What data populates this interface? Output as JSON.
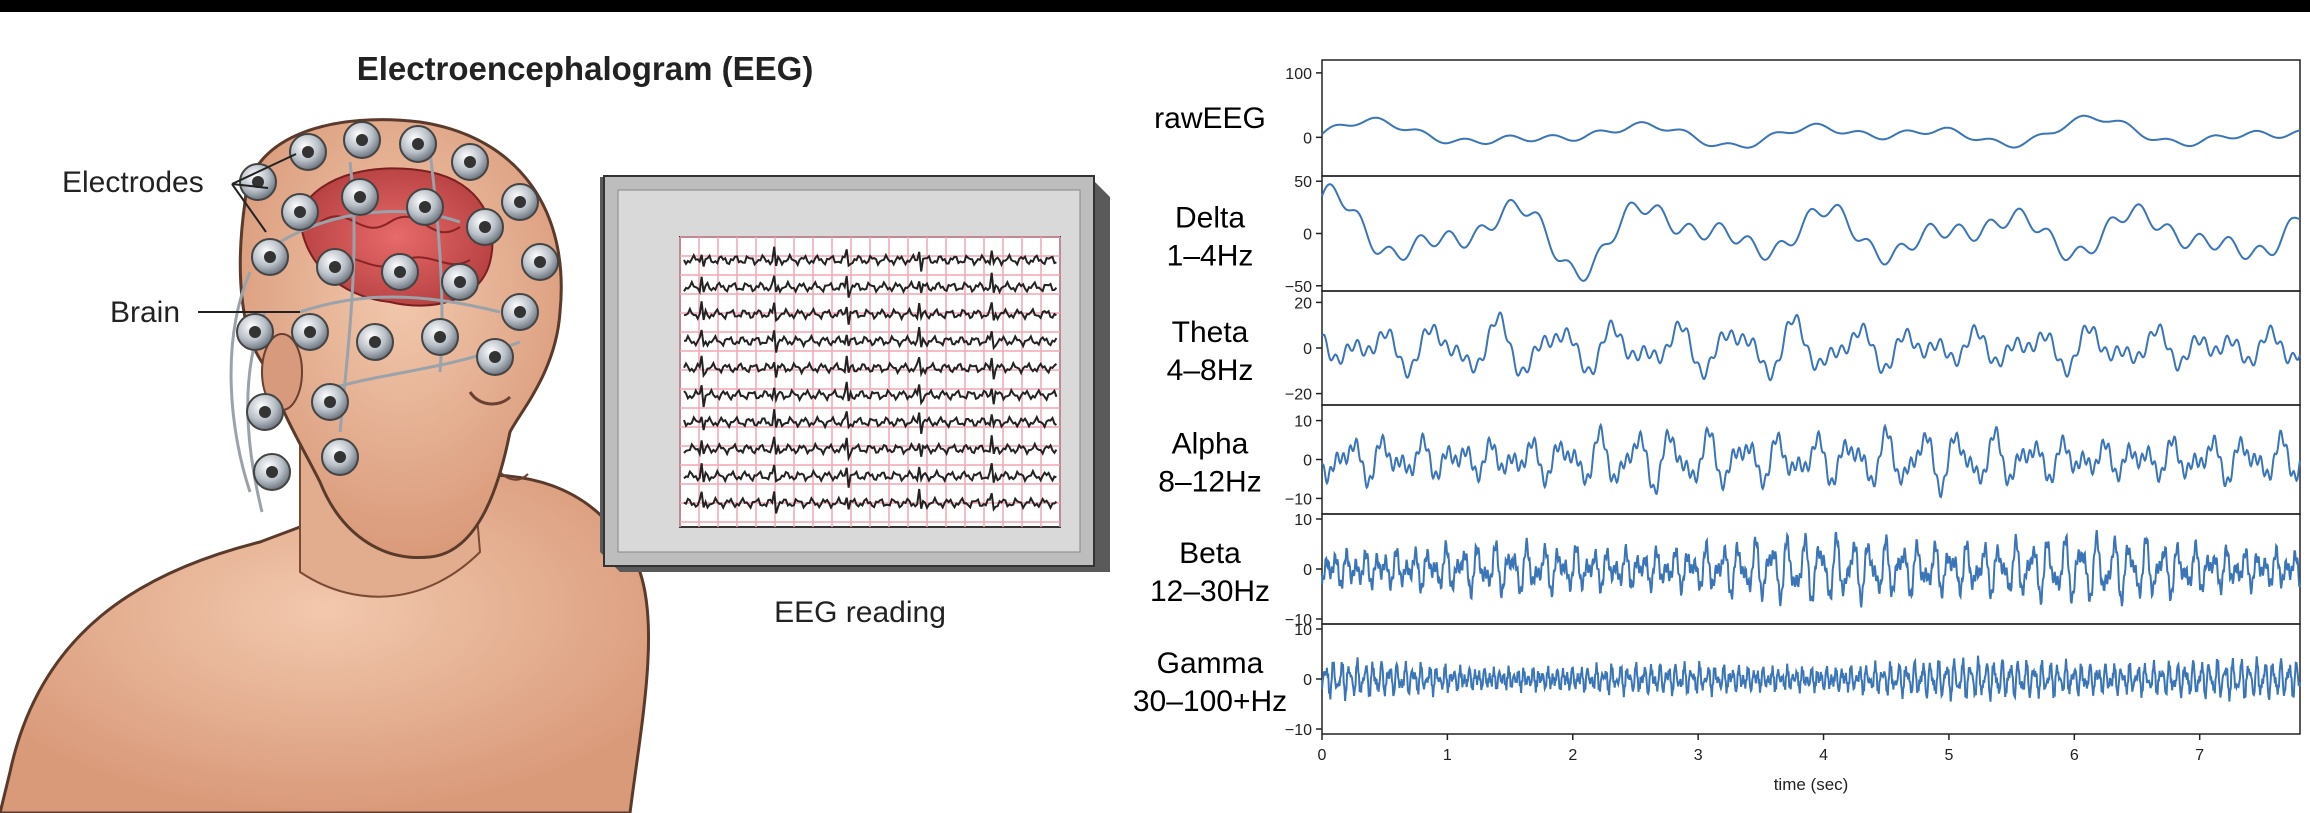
{
  "diagram": {
    "title": "Electroencephalogram (EEG)",
    "callouts": [
      "Electrodes",
      "Brain"
    ],
    "monitor_caption": "EEG reading"
  },
  "chart_data": {
    "type": "line",
    "xlabel": "time (sec)",
    "x_ticks": [
      "0",
      "1",
      "2",
      "3",
      "4",
      "5",
      "6",
      "7"
    ],
    "xlim": [
      0,
      7.8
    ],
    "line_color": "#3a75b8",
    "panels": [
      {
        "name": "rawEEG",
        "name2": "",
        "yticks": [
          "100",
          "0"
        ],
        "ytick_values": [
          100,
          0
        ],
        "ylim": [
          -60,
          120
        ],
        "amp": 20,
        "base": 5,
        "freq": 1.5
      },
      {
        "name": "Delta",
        "name2": "1–4Hz",
        "yticks": [
          "50",
          "0",
          "−50"
        ],
        "ytick_values": [
          50,
          0,
          -50
        ],
        "ylim": [
          -55,
          55
        ],
        "amp": 30,
        "base": 0,
        "freq": 2.2
      },
      {
        "name": "Theta",
        "name2": "4–8Hz",
        "yticks": [
          "20",
          "0",
          "−20"
        ],
        "ytick_values": [
          20,
          0,
          -20
        ],
        "ylim": [
          -25,
          25
        ],
        "amp": 10,
        "base": 0,
        "freq": 6
      },
      {
        "name": "Alpha",
        "name2": "8–12Hz",
        "yticks": [
          "10",
          "0",
          "−10"
        ],
        "ytick_values": [
          10,
          0,
          -10
        ],
        "ylim": [
          -14,
          14
        ],
        "amp": 6,
        "base": 0,
        "freq": 10
      },
      {
        "name": "Beta",
        "name2": "12–30Hz",
        "yticks": [
          "10",
          "0",
          "−10"
        ],
        "ytick_values": [
          10,
          0,
          -10
        ],
        "ylim": [
          -11,
          11
        ],
        "amp": 5,
        "base": 0,
        "freq": 22
      },
      {
        "name": "Gamma",
        "name2": "30–100+Hz",
        "yticks": [
          "10",
          "0",
          "−10"
        ],
        "ytick_values": [
          10,
          0,
          -10
        ],
        "ylim": [
          -11,
          11
        ],
        "amp": 3,
        "base": 0,
        "freq": 45
      }
    ]
  }
}
